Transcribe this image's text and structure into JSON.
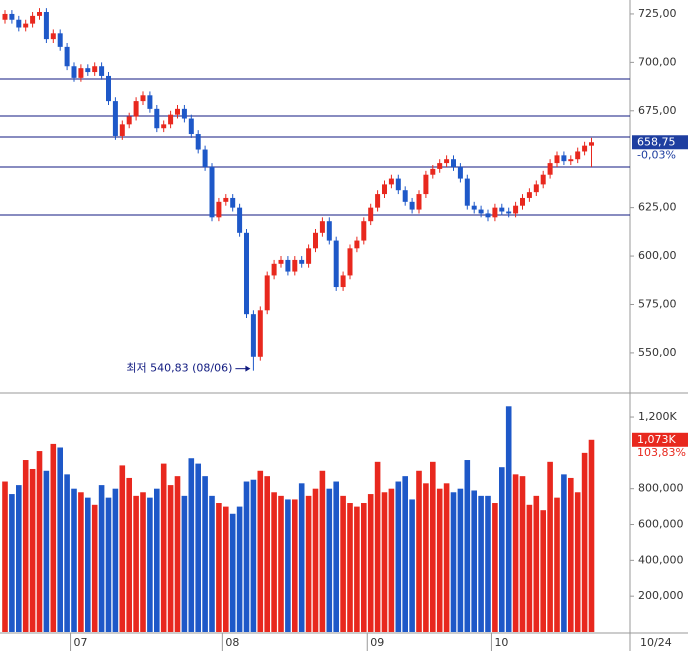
{
  "chart_data": {
    "type": "candlestick",
    "categories": [
      null,
      null,
      null,
      null,
      null,
      null,
      null,
      null,
      null,
      null,
      "07",
      null,
      null,
      null,
      null,
      null,
      null,
      null,
      null,
      null,
      null,
      null,
      null,
      null,
      null,
      null,
      null,
      null,
      null,
      null,
      null,
      null,
      "08",
      null,
      null,
      null,
      null,
      null,
      null,
      null,
      null,
      null,
      null,
      null,
      null,
      null,
      null,
      null,
      null,
      null,
      null,
      null,
      null,
      "09",
      null,
      null,
      null,
      null,
      null,
      null,
      null,
      null,
      null,
      null,
      null,
      null,
      null,
      null,
      null,
      null,
      null,
      "10",
      null,
      null,
      null,
      null,
      null,
      null,
      null,
      null,
      null,
      null,
      null,
      null,
      null,
      null
    ],
    "open": [
      722,
      725,
      722,
      718,
      720,
      724,
      726,
      712,
      715,
      708,
      698,
      692,
      697,
      695,
      698,
      693,
      680,
      662,
      668,
      672,
      680,
      683,
      676,
      666,
      668,
      673,
      676,
      671,
      663,
      655,
      646,
      620,
      628,
      630,
      625,
      612,
      570,
      548,
      572,
      590,
      596,
      598,
      592,
      598,
      596,
      604,
      612,
      618,
      608,
      584,
      590,
      604,
      608,
      618,
      625,
      632,
      637,
      640,
      634,
      628,
      624,
      632,
      642,
      645,
      648,
      650,
      646,
      640,
      626,
      624,
      622,
      620,
      625,
      623,
      622,
      626,
      630,
      633,
      637,
      642,
      648,
      652,
      649,
      650,
      654,
      657
    ],
    "high": [
      727,
      727,
      724,
      722,
      726,
      728,
      728,
      717,
      717,
      710,
      700,
      699,
      699,
      700,
      700,
      695,
      682,
      670,
      674,
      682,
      685,
      685,
      678,
      670,
      675,
      678,
      678,
      673,
      665,
      657,
      648,
      630,
      632,
      632,
      627,
      614,
      572,
      574,
      592,
      598,
      600,
      600,
      600,
      600,
      606,
      614,
      620,
      620,
      610,
      592,
      606,
      610,
      620,
      627,
      634,
      639,
      642,
      642,
      636,
      630,
      634,
      644,
      647,
      650,
      652,
      652,
      648,
      642,
      628,
      626,
      624,
      627,
      627,
      625,
      628,
      632,
      635,
      639,
      644,
      650,
      654,
      654,
      652,
      656,
      659,
      661
    ],
    "low": [
      720,
      720,
      716,
      716,
      718,
      722,
      710,
      710,
      706,
      696,
      690,
      690,
      693,
      693,
      691,
      678,
      660,
      660,
      666,
      670,
      678,
      674,
      664,
      664,
      666,
      671,
      669,
      661,
      653,
      644,
      618,
      618,
      626,
      623,
      610,
      568,
      540.83,
      546,
      570,
      588,
      594,
      590,
      590,
      594,
      594,
      602,
      610,
      606,
      582,
      582,
      588,
      602,
      606,
      616,
      623,
      630,
      635,
      632,
      626,
      622,
      622,
      630,
      640,
      643,
      646,
      644,
      638,
      624,
      622,
      620,
      618,
      618,
      621,
      620,
      620,
      624,
      628,
      631,
      635,
      640,
      646,
      647,
      647,
      648,
      652,
      646
    ],
    "close": [
      725,
      722,
      718,
      720,
      724,
      726,
      712,
      715,
      708,
      698,
      692,
      697,
      695,
      698,
      693,
      680,
      662,
      668,
      672,
      680,
      683,
      676,
      666,
      668,
      673,
      676,
      671,
      663,
      655,
      646,
      620,
      628,
      630,
      625,
      612,
      570,
      548,
      572,
      590,
      596,
      598,
      592,
      598,
      596,
      604,
      612,
      618,
      608,
      584,
      590,
      604,
      608,
      618,
      625,
      632,
      637,
      640,
      634,
      628,
      624,
      632,
      642,
      645,
      648,
      650,
      646,
      640,
      626,
      624,
      622,
      620,
      625,
      623,
      622,
      626,
      630,
      633,
      637,
      642,
      648,
      652,
      649,
      650,
      654,
      657,
      658.75
    ],
    "up_color": "#e8281e",
    "down_color": "#1e58c8",
    "ylim": [
      529.3,
      732.2
    ],
    "yticks": [
      {
        "value": 725,
        "label": "725,00"
      },
      {
        "value": 700,
        "label": "700,00"
      },
      {
        "value": 675,
        "label": "675,00"
      },
      {
        "value": 625,
        "label": "625,00"
      },
      {
        "value": 600,
        "label": "600,00"
      },
      {
        "value": 575,
        "label": "575,00"
      },
      {
        "value": 550,
        "label": "550,00"
      }
    ],
    "reference_lines": [
      691.4,
      672.3,
      661.5,
      646,
      621.2
    ],
    "reference_color": "#101a80",
    "last_price_label": "658,75",
    "change_label": "-0,03%",
    "annotation": "최저 540,83 (08/06)",
    "annotation_index": 36,
    "last_date": "10/24",
    "volume": {
      "values": [
        840000,
        770000,
        820000,
        960000,
        910000,
        1010000,
        900000,
        1050000,
        1030000,
        880000,
        800000,
        780000,
        750000,
        710000,
        820000,
        750000,
        800000,
        930000,
        860000,
        760000,
        780000,
        750000,
        800000,
        940000,
        820000,
        870000,
        760000,
        970000,
        940000,
        870000,
        760000,
        720000,
        700000,
        660000,
        700000,
        840000,
        850000,
        900000,
        870000,
        780000,
        760000,
        740000,
        740000,
        830000,
        760000,
        800000,
        900000,
        800000,
        840000,
        760000,
        720000,
        700000,
        720000,
        770000,
        950000,
        780000,
        800000,
        840000,
        870000,
        740000,
        900000,
        830000,
        950000,
        800000,
        830000,
        780000,
        800000,
        960000,
        790000,
        760000,
        760000,
        720000,
        920000,
        1260000,
        880000,
        870000,
        710000,
        760000,
        680000,
        950000,
        750000,
        880000,
        860000,
        780000,
        1000000,
        1073000
      ],
      "ylim": [
        0,
        1323000
      ],
      "yticks": [
        {
          "value": 1200000,
          "label": "1,200K"
        },
        {
          "value": 800000,
          "label": "800,000"
        },
        {
          "value": 600000,
          "label": "600,000"
        },
        {
          "value": 400000,
          "label": "400,000"
        },
        {
          "value": 200000,
          "label": "200,000"
        }
      ],
      "last_label": "1,073K",
      "ratio_label": "103,83%"
    }
  }
}
